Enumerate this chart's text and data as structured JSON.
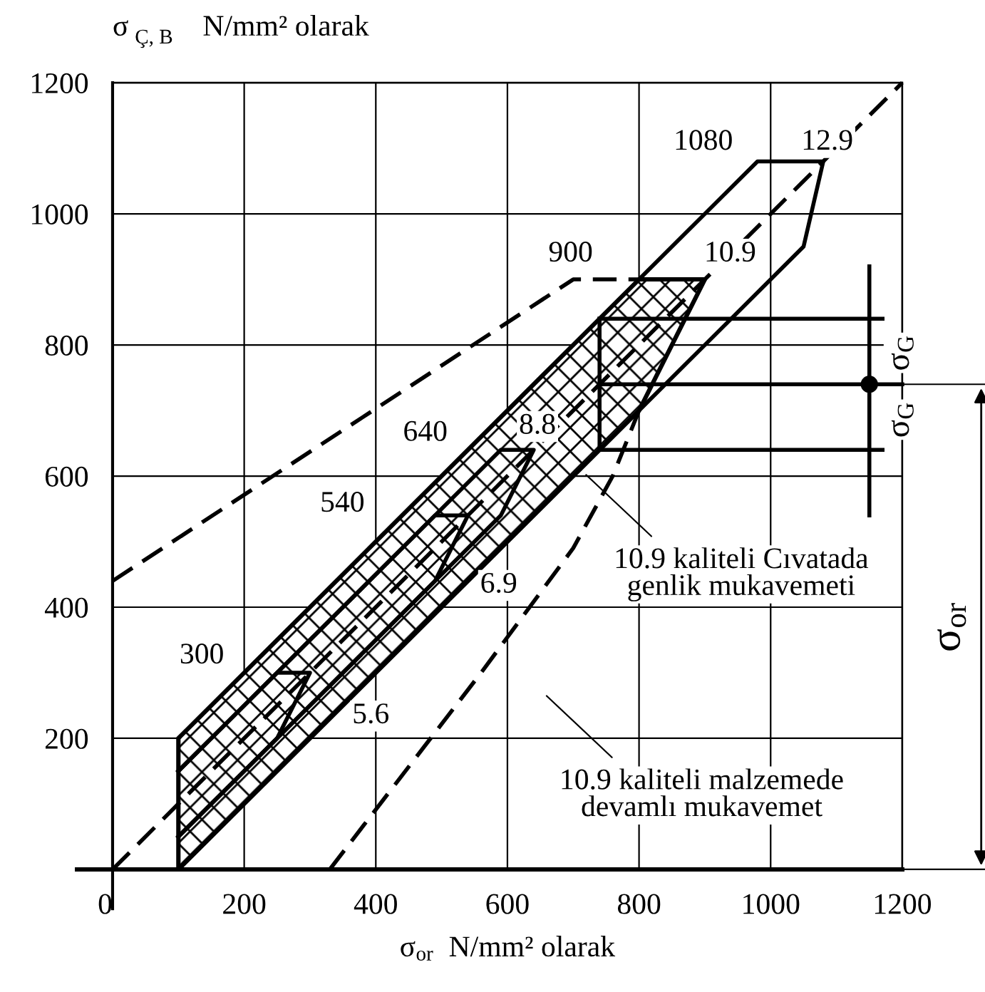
{
  "chart_data": {
    "type": "line",
    "xlabel": "σ$_{or}$  N/mm² olarak",
    "ylabel": "σ$_{Ç, B}$  N/mm² olarak",
    "xlim": [
      0,
      1200
    ],
    "ylim": [
      0,
      1200
    ],
    "xticks": [
      0,
      200,
      400,
      600,
      800,
      1000,
      1200
    ],
    "yticks": [
      200,
      400,
      600,
      800,
      1000,
      1200
    ],
    "grid": true,
    "color": "#000000",
    "series": [
      {
        "type": "area",
        "x": [
          100,
          800,
          900,
          800,
          100,
          100
        ],
        "values": [
          200,
          900,
          900,
          700,
          0,
          200
        ]
      },
      {
        "x": [
          0,
          1200
        ],
        "values": [
          0,
          1200
        ],
        "line_style": "dashed"
      },
      {
        "x": [
          0,
          700,
          800
        ],
        "values": [
          440,
          900,
          900
        ],
        "line_style": "dashed"
      },
      {
        "x": [
          330,
          560,
          700,
          760,
          800
        ],
        "values": [
          0,
          300,
          490,
          600,
          700
        ],
        "line_style": "dashed"
      },
      {
        "x": [
          800,
          980,
          1080,
          1050,
          800
        ],
        "values": [
          900,
          1080,
          1080,
          950,
          700
        ]
      },
      {
        "x": [
          100,
          250,
          300,
          250,
          100
        ],
        "values": [
          150,
          300,
          300,
          200,
          50
        ]
      },
      {
        "x": [
          100,
          490,
          540,
          490,
          100
        ],
        "values": [
          150,
          540,
          540,
          440,
          50
        ]
      },
      {
        "x": [
          100,
          590,
          640,
          590,
          100
        ],
        "values": [
          150,
          640,
          640,
          540,
          50
        ]
      },
      {
        "x": [
          740,
          740
        ],
        "values": [
          640,
          840
        ]
      },
      {
        "x": [
          740,
          1170
        ],
        "values": [
          840,
          840
        ]
      },
      {
        "x": [
          740,
          1200
        ],
        "values": [
          740,
          740
        ]
      },
      {
        "x": [
          740,
          1170
        ],
        "values": [
          640,
          640
        ]
      },
      {
        "x": [
          1150,
          1150
        ],
        "values": [
          540,
          920
        ]
      },
      {
        "type": "scatter",
        "x": [
          1150
        ],
        "values": [
          740
        ],
        "marker": "circle"
      }
    ],
    "annotations": [
      "300",
      "540",
      "640",
      "900",
      "1080",
      "12.9",
      "10.9",
      "8.8",
      "6.9",
      "5.6",
      "10.9 kaliteli Cıvatada\ngenlik mukavemeti",
      "10.9 kaliteli malzemede\ndevamlı mukavemet",
      "σ$_{G}$",
      "σ$_{G}$",
      "σ$_{or}$"
    ]
  }
}
